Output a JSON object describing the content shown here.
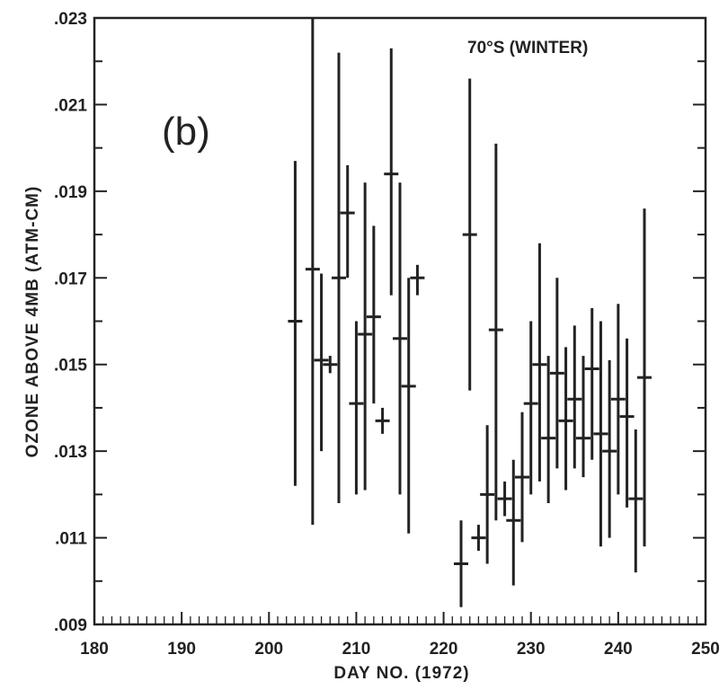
{
  "chart_data": {
    "type": "scatter",
    "panel_label": "(b)",
    "annotation": "70°S (WINTER)",
    "xlabel": "DAY NO. (1972)",
    "ylabel": "OZONE ABOVE 4MB (ATM-CM)",
    "xlim": [
      180,
      250
    ],
    "ylim": [
      0.009,
      0.023
    ],
    "x_ticks": [
      180,
      190,
      200,
      210,
      220,
      230,
      240,
      250
    ],
    "x_tick_labels": [
      "180",
      "190",
      "200",
      "210",
      "220",
      "230",
      "240",
      "250"
    ],
    "y_ticks": [
      0.009,
      0.011,
      0.013,
      0.015,
      0.017,
      0.019,
      0.021,
      0.023
    ],
    "y_tick_labels": [
      ".009",
      ".011",
      ".013",
      ".015",
      ".017",
      ".019",
      ".021",
      ".023"
    ],
    "x_minor_step": 1,
    "y_minor_step": 0.001,
    "series": [
      {
        "error_bars": true,
        "points": [
          {
            "x": 203,
            "y": 0.016,
            "low": 0.0122,
            "high": 0.0197
          },
          {
            "x": 205,
            "y": 0.0172,
            "low": 0.0113,
            "high": 0.023
          },
          {
            "x": 206,
            "y": 0.0151,
            "low": 0.013,
            "high": 0.0171
          },
          {
            "x": 207,
            "y": 0.015,
            "low": 0.0148,
            "high": 0.0152
          },
          {
            "x": 208,
            "y": 0.017,
            "low": 0.0118,
            "high": 0.0222
          },
          {
            "x": 209,
            "y": 0.0185,
            "low": 0.017,
            "high": 0.0196
          },
          {
            "x": 210,
            "y": 0.0141,
            "low": 0.012,
            "high": 0.016
          },
          {
            "x": 211,
            "y": 0.0157,
            "low": 0.0121,
            "high": 0.0192
          },
          {
            "x": 212,
            "y": 0.0161,
            "low": 0.0141,
            "high": 0.0182
          },
          {
            "x": 213,
            "y": 0.0137,
            "low": 0.0134,
            "high": 0.014
          },
          {
            "x": 214,
            "y": 0.0194,
            "low": 0.0166,
            "high": 0.0223
          },
          {
            "x": 215,
            "y": 0.0156,
            "low": 0.012,
            "high": 0.0192
          },
          {
            "x": 216,
            "y": 0.0145,
            "low": 0.0111,
            "high": 0.017
          },
          {
            "x": 217,
            "y": 0.017,
            "low": 0.0166,
            "high": 0.0173
          },
          {
            "x": 222,
            "y": 0.0104,
            "low": 0.0094,
            "high": 0.0114
          },
          {
            "x": 223,
            "y": 0.018,
            "low": 0.0144,
            "high": 0.0216
          },
          {
            "x": 224,
            "y": 0.011,
            "low": 0.0107,
            "high": 0.0113
          },
          {
            "x": 225,
            "y": 0.012,
            "low": 0.0104,
            "high": 0.0136
          },
          {
            "x": 226,
            "y": 0.0158,
            "low": 0.0114,
            "high": 0.0201
          },
          {
            "x": 227,
            "y": 0.0119,
            "low": 0.0115,
            "high": 0.0123
          },
          {
            "x": 228,
            "y": 0.0114,
            "low": 0.0099,
            "high": 0.0128
          },
          {
            "x": 229,
            "y": 0.0124,
            "low": 0.0109,
            "high": 0.0139
          },
          {
            "x": 230,
            "y": 0.0141,
            "low": 0.012,
            "high": 0.016
          },
          {
            "x": 231,
            "y": 0.015,
            "low": 0.0123,
            "high": 0.0178
          },
          {
            "x": 232,
            "y": 0.0133,
            "low": 0.0118,
            "high": 0.0152
          },
          {
            "x": 233,
            "y": 0.0148,
            "low": 0.0126,
            "high": 0.017
          },
          {
            "x": 234,
            "y": 0.0137,
            "low": 0.0121,
            "high": 0.0154
          },
          {
            "x": 235,
            "y": 0.0142,
            "low": 0.0126,
            "high": 0.0159
          },
          {
            "x": 236,
            "y": 0.0133,
            "low": 0.0124,
            "high": 0.0152
          },
          {
            "x": 237,
            "y": 0.0149,
            "low": 0.0128,
            "high": 0.0163
          },
          {
            "x": 238,
            "y": 0.0134,
            "low": 0.0108,
            "high": 0.016
          },
          {
            "x": 239,
            "y": 0.013,
            "low": 0.011,
            "high": 0.0151
          },
          {
            "x": 240,
            "y": 0.0142,
            "low": 0.012,
            "high": 0.0164
          },
          {
            "x": 241,
            "y": 0.0138,
            "low": 0.0117,
            "high": 0.0156
          },
          {
            "x": 242,
            "y": 0.0119,
            "low": 0.0102,
            "high": 0.0135
          },
          {
            "x": 243,
            "y": 0.0147,
            "low": 0.0108,
            "high": 0.0186
          }
        ]
      }
    ],
    "grid": false,
    "colors": {
      "ink": "#222222",
      "background": "#ffffff"
    }
  }
}
